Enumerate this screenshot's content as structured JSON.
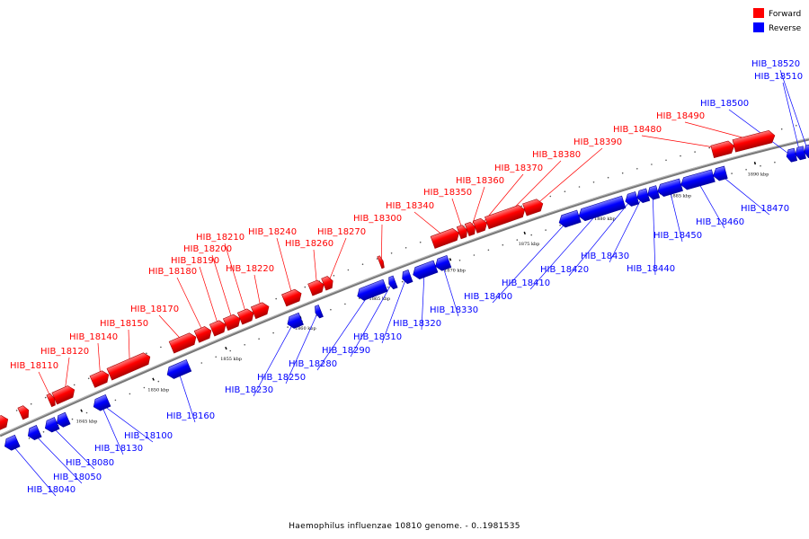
{
  "caption": "Haemophilus influenzae 10810 genome. - 0..1981535",
  "legend": {
    "forward": {
      "label": "Forward",
      "color": "#ff0000"
    },
    "reverse": {
      "label": "Reverse",
      "color": "#0000ff"
    }
  },
  "backbone_color": "#777777",
  "ticks": [
    "1845 kbp",
    "1850 kbp",
    "1855 kbp",
    "1860 kbp",
    "1865 kbp",
    "1870 kbp",
    "1875 kbp",
    "1880 kbp",
    "1885 kbp",
    "1890 kbp"
  ],
  "forward_genes": [
    "HIB_18110",
    "HIB_18120",
    "HIB_18140",
    "HIB_18150",
    "HIB_18170",
    "HIB_18180",
    "HIB_18190",
    "HIB_18200",
    "HIB_18210",
    "HIB_18220",
    "HIB_18240",
    "HIB_18260",
    "HIB_18270",
    "HIB_18300",
    "HIB_18340",
    "HIB_18350",
    "HIB_18360",
    "HIB_18370",
    "HIB_18380",
    "HIB_18390",
    "HIB_18480",
    "HIB_18490"
  ],
  "reverse_genes": [
    "HIB_18040",
    "HIB_18050",
    "HIB_18080",
    "HIB_18100",
    "HIB_18130",
    "HIB_18160",
    "HIB_18230",
    "HIB_18250",
    "HIB_18280",
    "HIB_18290",
    "HIB_18310",
    "HIB_18320",
    "HIB_18330",
    "HIB_18400",
    "HIB_18410",
    "HIB_18420",
    "HIB_18430",
    "HIB_18440",
    "HIB_18450",
    "HIB_18460",
    "HIB_18470",
    "HIB_18500",
    "HIB_18510",
    "HIB_18520"
  ]
}
